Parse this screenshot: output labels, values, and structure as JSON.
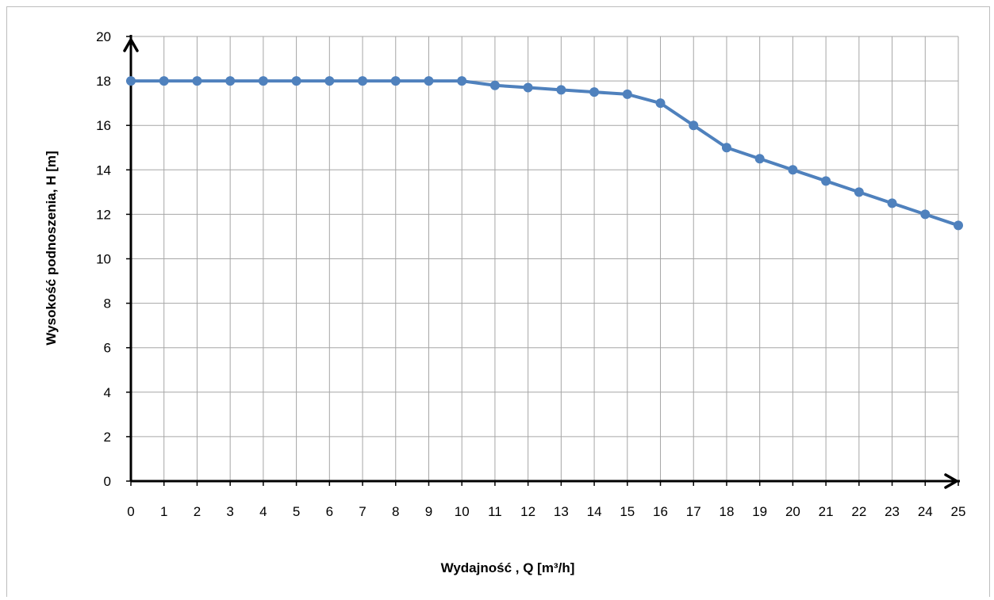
{
  "chart_data": {
    "type": "line",
    "xlabel": "Wydajność ,    Q [m³/h]",
    "ylabel": "Wysokość podnoszenia,      H [m]",
    "xlim": [
      0,
      25
    ],
    "ylim": [
      0,
      20
    ],
    "x_ticks": [
      "0",
      "1",
      "2",
      "3",
      "4",
      "5",
      "6",
      "7",
      "8",
      "9",
      "10",
      "11",
      "12",
      "13",
      "14",
      "15",
      "16",
      "17",
      "18",
      "19",
      "20",
      "21",
      "22",
      "23",
      "24",
      "25"
    ],
    "y_ticks": [
      "0",
      "2",
      "4",
      "6",
      "8",
      "10",
      "12",
      "14",
      "16",
      "18",
      "20"
    ],
    "grid": true,
    "series": [
      {
        "color": "#4f81bd",
        "x": [
          0,
          1,
          2,
          3,
          4,
          5,
          6,
          7,
          8,
          9,
          10,
          11,
          12,
          13,
          14,
          15,
          16,
          17,
          18,
          19,
          20,
          21,
          22,
          23,
          24,
          25
        ],
        "y": [
          18,
          18,
          18,
          18,
          18,
          18,
          18,
          18,
          18,
          18,
          18,
          17.8,
          17.7,
          17.6,
          17.5,
          17.4,
          17,
          16,
          15,
          14.5,
          14,
          13.5,
          13,
          12.5,
          12,
          11.5
        ]
      }
    ]
  }
}
